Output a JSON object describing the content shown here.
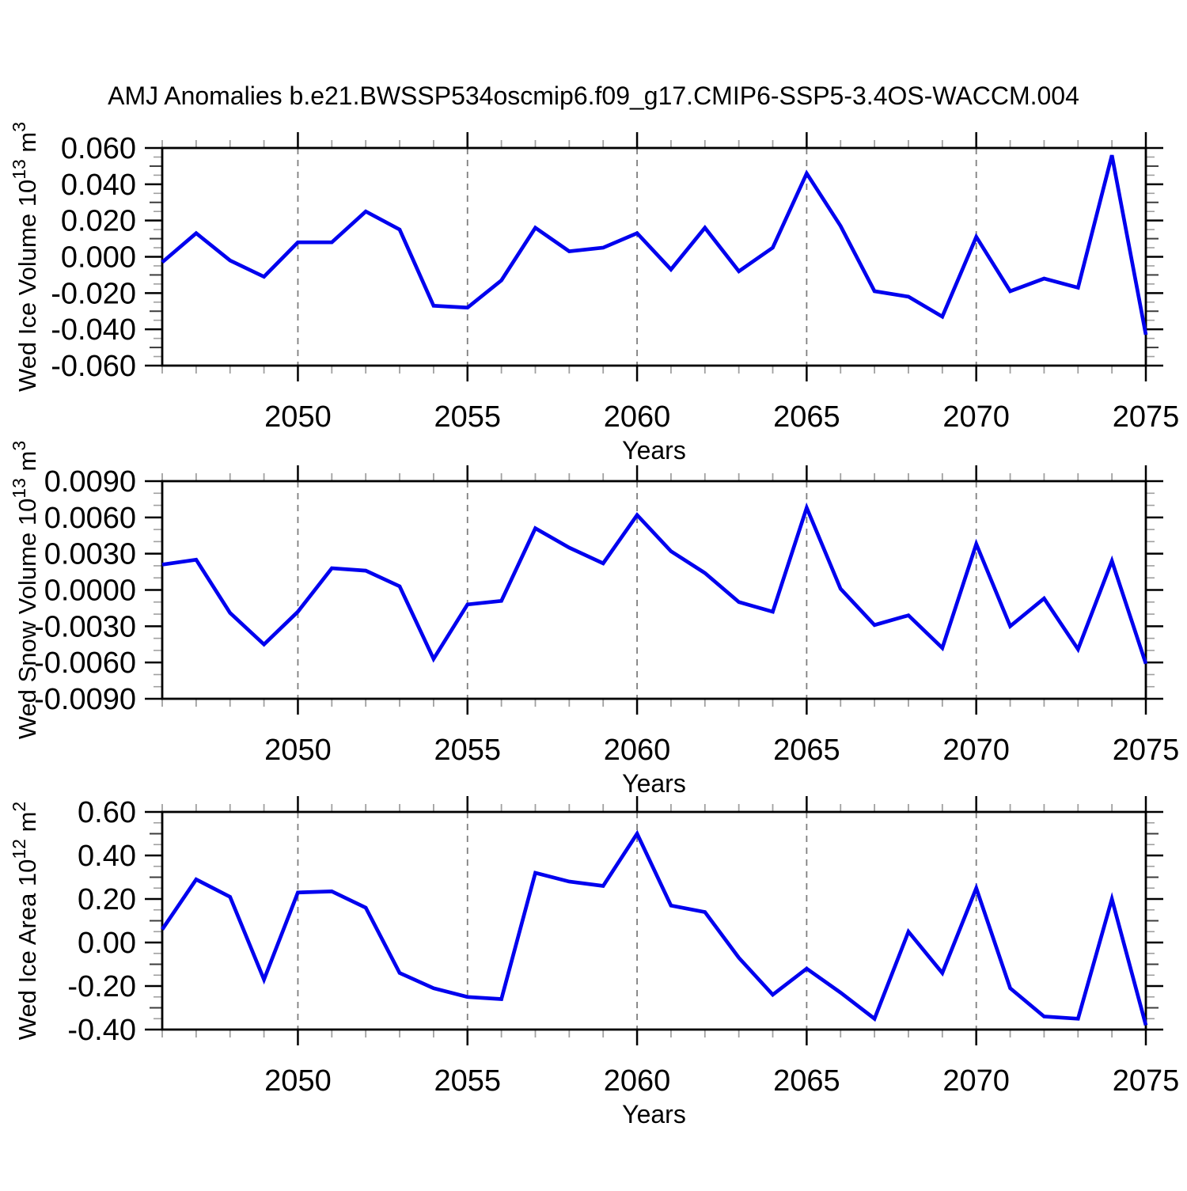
{
  "title": "AMJ Anomalies b.e21.BWSSP534oscmip6.f09_g17.CMIP6-SSP5-3.4OS-WACCM.004",
  "colors": {
    "line": "#0000ee",
    "grid": "#7f7f7f",
    "axis": "#000000",
    "major_tick": "#000000",
    "minor_tick": "#a0a0a0",
    "mid_minor_tick": "#3c3c3c",
    "background": "#ffffff"
  },
  "xaxis": {
    "label": "Years",
    "start": 2046,
    "end": 2075,
    "major_tick_start": 2050,
    "major_tick_step": 5,
    "major_tick_labels": [
      "2050",
      "2055",
      "2060",
      "2065",
      "2070",
      "2075"
    ],
    "gridline_years": [
      2050,
      2055,
      2060,
      2065,
      2070
    ]
  },
  "chart_data": [
    {
      "id": "ice-volume",
      "type": "line",
      "ylabel": "Wed Ice Volume 10^13 m^3",
      "ylabel_parts": [
        {
          "text": "Wed Ice Volume 10"
        },
        {
          "text": "13",
          "sup": true
        },
        {
          "text": " m"
        },
        {
          "text": "3",
          "sup": true
        }
      ],
      "xlabel": "Years",
      "ylim": [
        -0.06,
        0.06
      ],
      "ytick_step": 0.02,
      "y_decimals": 3,
      "y_minor_divisions": 4,
      "grid": "dashed-vertical-only",
      "x": [
        2046,
        2047,
        2048,
        2049,
        2050,
        2051,
        2052,
        2053,
        2054,
        2055,
        2056,
        2057,
        2058,
        2059,
        2060,
        2061,
        2062,
        2063,
        2064,
        2065,
        2066,
        2067,
        2068,
        2069,
        2070,
        2071,
        2072,
        2073,
        2074,
        2075
      ],
      "values": [
        -0.003,
        0.013,
        -0.002,
        -0.011,
        0.008,
        0.008,
        0.025,
        0.015,
        -0.027,
        -0.028,
        -0.013,
        0.016,
        0.003,
        0.005,
        0.013,
        -0.007,
        0.016,
        -0.008,
        0.005,
        0.046,
        0.017,
        -0.019,
        -0.022,
        -0.033,
        0.011,
        -0.019,
        -0.012,
        -0.017,
        0.056,
        -0.043
      ]
    },
    {
      "id": "snow-volume",
      "type": "line",
      "ylabel": "Wed Snow Volume 10^13 m^3",
      "ylabel_parts": [
        {
          "text": "Wed Snow Volume 10"
        },
        {
          "text": "13",
          "sup": true
        },
        {
          "text": " m"
        },
        {
          "text": "3",
          "sup": true
        }
      ],
      "xlabel": "Years",
      "ylim": [
        -0.009,
        0.009
      ],
      "ytick_step": 0.003,
      "y_decimals": 4,
      "y_minor_divisions": 3,
      "grid": "dashed-vertical-only",
      "x": [
        2046,
        2047,
        2048,
        2049,
        2050,
        2051,
        2052,
        2053,
        2054,
        2055,
        2056,
        2057,
        2058,
        2059,
        2060,
        2061,
        2062,
        2063,
        2064,
        2065,
        2066,
        2067,
        2068,
        2069,
        2070,
        2071,
        2072,
        2073,
        2074,
        2075
      ],
      "values": [
        0.0021,
        0.0025,
        -0.0019,
        -0.0045,
        -0.0018,
        0.0018,
        0.0016,
        0.0003,
        -0.0057,
        -0.0012,
        -0.0009,
        0.0051,
        0.0035,
        0.0022,
        0.0062,
        0.0032,
        0.0014,
        -0.001,
        -0.0018,
        0.0068,
        0.0001,
        -0.0029,
        -0.0021,
        -0.0048,
        0.0038,
        -0.003,
        -0.0007,
        -0.0049,
        0.0024,
        -0.0061
      ]
    },
    {
      "id": "ice-area",
      "type": "line",
      "ylabel": "Wed Ice Area 10^12 m^2",
      "ylabel_parts": [
        {
          "text": "Wed Ice Area 10"
        },
        {
          "text": "12",
          "sup": true
        },
        {
          "text": " m"
        },
        {
          "text": "2",
          "sup": true
        }
      ],
      "xlabel": "Years",
      "ylim": [
        -0.4,
        0.6
      ],
      "ytick_step": 0.2,
      "y_decimals": 2,
      "y_minor_divisions": 4,
      "grid": "dashed-vertical-only",
      "x": [
        2046,
        2047,
        2048,
        2049,
        2050,
        2051,
        2052,
        2053,
        2054,
        2055,
        2056,
        2057,
        2058,
        2059,
        2060,
        2061,
        2062,
        2063,
        2064,
        2065,
        2066,
        2067,
        2068,
        2069,
        2070,
        2071,
        2072,
        2073,
        2074,
        2075
      ],
      "values": [
        0.06,
        0.29,
        0.21,
        -0.17,
        0.23,
        0.235,
        0.16,
        -0.14,
        -0.21,
        -0.25,
        -0.26,
        0.32,
        0.28,
        0.26,
        0.5,
        0.17,
        0.14,
        -0.07,
        -0.24,
        -0.12,
        -0.23,
        -0.35,
        0.05,
        -0.14,
        0.25,
        -0.21,
        -0.34,
        -0.35,
        0.2,
        -0.38
      ]
    }
  ]
}
